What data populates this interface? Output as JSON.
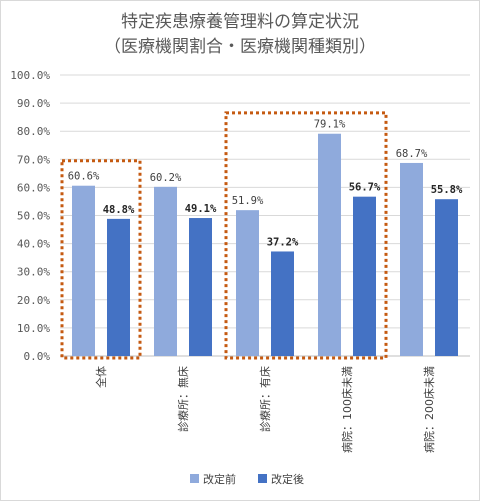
{
  "chart_data": {
    "type": "bar",
    "title": "特定疾患療養管理料の算定状況",
    "subtitle": "（医療機関割合・医療機関種類別）",
    "categories": [
      "全体",
      "診療所：無床",
      "診療所：有床",
      "病院：100床未満",
      "病院：200床未満"
    ],
    "series": [
      {
        "name": "改定前",
        "values": [
          60.6,
          60.2,
          51.9,
          79.1,
          68.7
        ],
        "labels": [
          "60.6%",
          "60.2%",
          "51.9%",
          "79.1%",
          "68.7%"
        ],
        "color": "#8faadc"
      },
      {
        "name": "改定後",
        "values": [
          48.8,
          49.1,
          37.2,
          56.7,
          55.8
        ],
        "labels": [
          "48.8%",
          "49.1%",
          "37.2%",
          "56.7%",
          "55.8%"
        ],
        "color": "#4472c4"
      }
    ],
    "ylim": [
      0,
      100
    ],
    "yticks": [
      "0.0%",
      "10.0%",
      "20.0%",
      "30.0%",
      "40.0%",
      "50.0%",
      "60.0%",
      "70.0%",
      "80.0%",
      "90.0%",
      "100.0%"
    ],
    "grid": true,
    "legend": "bottom",
    "highlighted_categories": [
      "全体",
      "診療所：有床",
      "病院：100床未満"
    ],
    "highlight_color": "#c55a11"
  }
}
